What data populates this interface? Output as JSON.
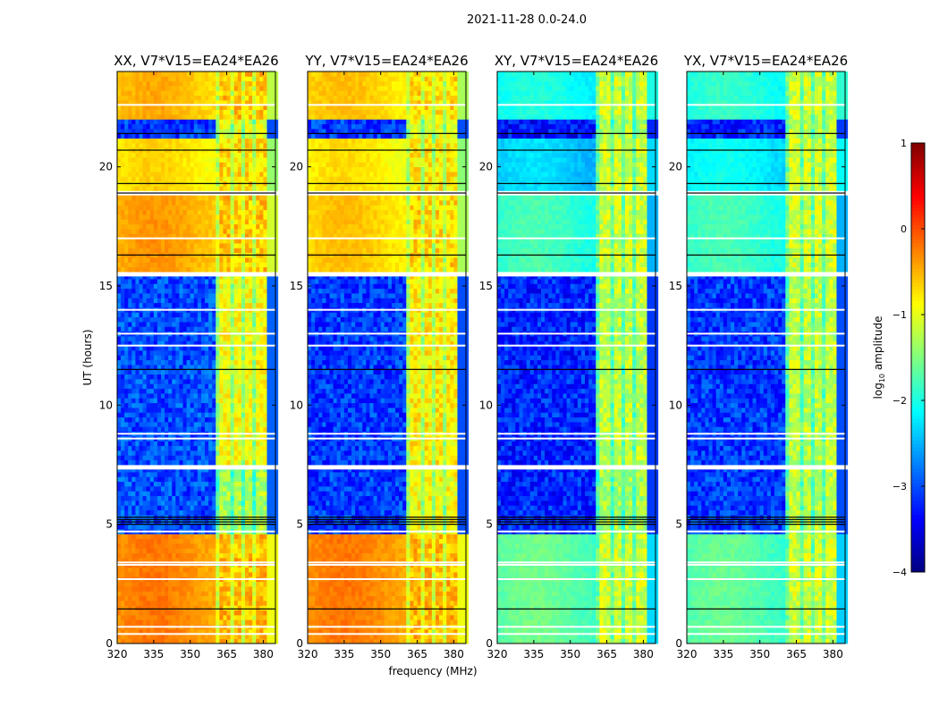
{
  "chart_data": {
    "type": "heatmap",
    "suptitle": "2021-11-28 0.0-24.0",
    "xlabel": "frequency (MHz)",
    "ylabel": "UT (hours)",
    "xlim": [
      320,
      385
    ],
    "ylim": [
      0,
      24
    ],
    "xticks": [
      320,
      335,
      350,
      365,
      380
    ],
    "yticks": [
      0,
      5,
      10,
      15,
      20
    ],
    "colorbar": {
      "label": "log10 amplitude",
      "label_main": "log",
      "label_sub": "10",
      "label_rest": " amplitude",
      "range": [
        -4,
        1
      ],
      "ticks": [
        1,
        0,
        -1,
        -2,
        -3,
        -4
      ],
      "tick_labels": [
        "1",
        "0",
        "−1",
        "−2",
        "−3",
        "−4"
      ],
      "colormap": "jet"
    },
    "rfi_band_mhz": [
      361,
      381
    ],
    "band_edge_mhz": [
      381,
      385
    ],
    "segments_hours": [
      {
        "t": [
          0,
          4.6
        ],
        "level": {
          "XX": -0.35,
          "YY": -0.35,
          "XY": -1.7,
          "YX": -1.75
        },
        "band": {
          "XX": -0.55,
          "YY": -0.55,
          "XY": -1.1,
          "YX": -1.1
        }
      },
      {
        "t": [
          4.6,
          7.3
        ],
        "level": {
          "XX": -3.0,
          "YY": -3.1,
          "XY": -3.2,
          "YX": -3.1
        },
        "band": {
          "XX": -1.3,
          "YY": -0.9,
          "XY": -1.3,
          "YX": -1.2
        }
      },
      {
        "t": [
          7.5,
          15.4
        ],
        "level": {
          "XX": -3.0,
          "YY": -3.1,
          "XY": -3.2,
          "YX": -3.1
        },
        "band": {
          "XX": -0.9,
          "YY": -0.8,
          "XY": -1.2,
          "YX": -1.2
        }
      },
      {
        "t": [
          15.6,
          18.8
        ],
        "level": {
          "XX": -0.5,
          "YY": -0.7,
          "XY": -1.9,
          "YX": -1.9
        },
        "band": {
          "XX": -0.6,
          "YY": -0.7,
          "XY": -1.1,
          "YX": -1.1
        }
      },
      {
        "t": [
          19.0,
          21.2
        ],
        "level": {
          "XX": -0.8,
          "YY": -0.85,
          "XY": -2.4,
          "YX": -2.2
        },
        "band": {
          "XX": -0.7,
          "YY": -0.8,
          "XY": -1.1,
          "YX": -1.1
        }
      },
      {
        "t": [
          21.2,
          22.0
        ],
        "level": {
          "XX": -3.1,
          "YY": -3.1,
          "XY": -3.3,
          "YX": -3.2
        },
        "band": {
          "XX": -1.0,
          "YY": -1.0,
          "XY": -1.3,
          "YX": -1.2
        }
      },
      {
        "t": [
          22.0,
          24.0
        ],
        "level": {
          "XX": -0.6,
          "YY": -0.7,
          "XY": -2.1,
          "YX": -2.0
        },
        "band": {
          "XX": -0.6,
          "YY": -0.7,
          "XY": -1.1,
          "YX": -1.1
        }
      }
    ],
    "flagged_rows_hours": [
      0.4,
      0.7,
      2.7,
      3.3,
      3.4,
      4.7,
      7.4,
      8.6,
      8.8,
      12.5,
      13.0,
      14.0,
      15.5,
      17.0,
      22.6
    ],
    "dark_rows_hours": [
      1.45,
      5.0,
      5.1,
      5.2,
      5.3,
      11.5,
      16.3,
      18.9,
      19.3,
      20.7,
      21.4
    ],
    "panels": [
      {
        "pol": "XX",
        "title": "XX, V7*V15=EA24*EA26"
      },
      {
        "pol": "YY",
        "title": "YY, V7*V15=EA24*EA26"
      },
      {
        "pol": "XY",
        "title": "XY, V7*V15=EA24*EA26"
      },
      {
        "pol": "YX",
        "title": "YX, V7*V15=EA24*EA26"
      }
    ]
  }
}
